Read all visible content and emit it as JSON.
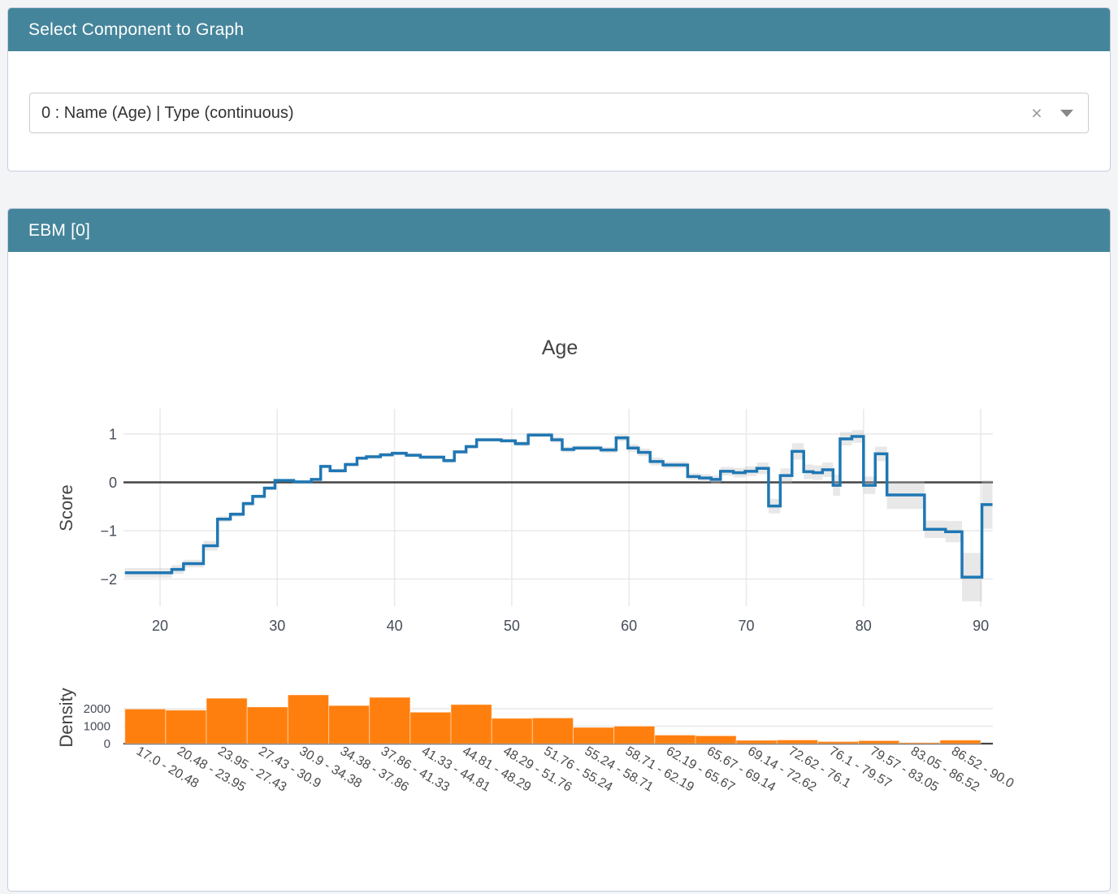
{
  "panel_select": {
    "header": "Select Component to Graph",
    "dropdown": {
      "value": "0 : Name (Age) | Type (continuous)",
      "clear_icon": "×",
      "caret_icon": "triangle-down"
    }
  },
  "panel_graph": {
    "header": "EBM [0]"
  },
  "colors": {
    "header_bg": "#45859B",
    "header_text": "#ffffff",
    "card_border": "#c3cde0",
    "line": "#1f77b4",
    "error_band": "#bdbdbd",
    "bar": "#ff7f0e",
    "grid": "#e9e9e9",
    "zero_line": "#444444",
    "tick_text": "#454c59"
  },
  "chart_data": {
    "type": "line",
    "title": "Age",
    "main": {
      "subtype": "step-line-with-error-band",
      "ylabel": "Score",
      "yticks": [
        1,
        0,
        -1,
        -2
      ],
      "xticks": [
        20,
        30,
        40,
        50,
        60,
        70,
        80,
        90
      ],
      "xlim": [
        16.6,
        91.0
      ],
      "ylim": [
        -2.56,
        1.55
      ],
      "grid": true,
      "step_edges": [
        17.0,
        21.0,
        22.0,
        23.7,
        24.9,
        26.0,
        27.1,
        27.9,
        28.9,
        29.8,
        31.4,
        32.9,
        33.7,
        34.5,
        35.8,
        36.8,
        37.6,
        38.8,
        39.8,
        41.0,
        42.2,
        44.2,
        45.1,
        46.1,
        47.0,
        49.1,
        50.3,
        51.4,
        53.4,
        54.3,
        55.3,
        57.6,
        58.9,
        59.9,
        60.8,
        61.8,
        62.9,
        65.0,
        66.0,
        67.0,
        67.8,
        68.9,
        69.9,
        70.9,
        71.9,
        72.9,
        73.9,
        74.9,
        75.7,
        76.5,
        77.4,
        78.0,
        79.0,
        80.0,
        81.0,
        82.0,
        85.2,
        87.0,
        88.4,
        90.1,
        91.0
      ],
      "values": [
        -1.87,
        -1.8,
        -1.68,
        -1.31,
        -0.76,
        -0.66,
        -0.44,
        -0.29,
        -0.12,
        0.04,
        0.01,
        0.06,
        0.33,
        0.24,
        0.37,
        0.5,
        0.53,
        0.57,
        0.6,
        0.56,
        0.52,
        0.45,
        0.63,
        0.74,
        0.88,
        0.86,
        0.8,
        0.98,
        0.88,
        0.68,
        0.71,
        0.67,
        0.92,
        0.71,
        0.62,
        0.43,
        0.36,
        0.12,
        0.09,
        0.06,
        0.23,
        0.2,
        0.23,
        0.29,
        -0.49,
        0.14,
        0.64,
        0.22,
        0.2,
        0.26,
        -0.06,
        0.9,
        0.95,
        -0.06,
        0.59,
        -0.26,
        -0.97,
        -1.02,
        -1.96,
        -0.46
      ],
      "err": [
        0.1,
        0.09,
        0.08,
        0.1,
        0.06,
        0.05,
        0.05,
        0.04,
        0.04,
        0.03,
        0.03,
        0.03,
        0.04,
        0.04,
        0.04,
        0.04,
        0.04,
        0.04,
        0.04,
        0.04,
        0.04,
        0.05,
        0.04,
        0.04,
        0.04,
        0.04,
        0.05,
        0.05,
        0.06,
        0.06,
        0.05,
        0.06,
        0.07,
        0.08,
        0.08,
        0.08,
        0.07,
        0.07,
        0.08,
        0.08,
        0.09,
        0.1,
        0.1,
        0.12,
        0.15,
        0.15,
        0.17,
        0.15,
        0.15,
        0.15,
        0.22,
        0.14,
        0.13,
        0.18,
        0.15,
        0.29,
        0.18,
        0.22,
        0.5,
        0.5
      ]
    },
    "density": {
      "subtype": "bar",
      "ylabel": "Density",
      "yticks": [
        0,
        1000,
        2000
      ],
      "bin_start": 17.0,
      "bin_end": 90.0,
      "bins": [
        "17.0 - 20.48",
        "20.48 - 23.95",
        "23.95 - 27.43",
        "27.43 - 30.9",
        "30.9 - 34.38",
        "34.38 - 37.86",
        "37.86 - 41.33",
        "41.33 - 44.81",
        "44.81 - 48.29",
        "48.29 - 51.76",
        "51.76 - 55.24",
        "55.24 - 58.71",
        "58.71 - 62.19",
        "62.19 - 65.67",
        "65.67 - 69.14",
        "69.14 - 72.62",
        "72.62 - 76.1",
        "76.1 - 79.57",
        "79.57 - 83.05",
        "83.05 - 86.52",
        "86.52 - 90.0"
      ],
      "values": [
        1980,
        1920,
        2600,
        2100,
        2790,
        2180,
        2650,
        1800,
        2240,
        1450,
        1470,
        930,
        1000,
        490,
        450,
        190,
        210,
        120,
        170,
        60,
        200
      ]
    }
  }
}
